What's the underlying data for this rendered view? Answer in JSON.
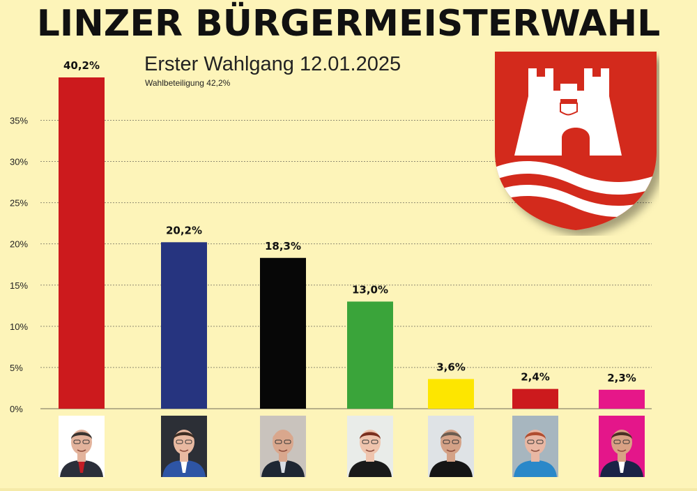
{
  "header": {
    "title": "LINZER BÜRGERMEISTERWAHL",
    "subtitle": "Erster Wahlgang 12.01.2025",
    "turnout": "Wahlbeteiligung 42,2%"
  },
  "chart_data": {
    "type": "bar",
    "title": "LINZER BÜRGERMEISTERWAHL",
    "subtitle": "Erster Wahlgang 12.01.2025",
    "ylim": [
      0,
      40.2
    ],
    "yticks": [
      0,
      5,
      10,
      15,
      20,
      25,
      30,
      35
    ],
    "ytick_labels": [
      "0%",
      "5%",
      "10%",
      "15%",
      "20%",
      "25%",
      "30%",
      "35%"
    ],
    "grid": true,
    "values": [
      40.2,
      20.2,
      18.3,
      13.0,
      3.6,
      2.4,
      2.3
    ],
    "value_labels": [
      "40,2%",
      "20,2%",
      "18,3%",
      "13,0%",
      "3,6%",
      "2,4%",
      "2,3%"
    ],
    "colors": [
      "#cc1a1d",
      "#26347f",
      "#070707",
      "#3aa43a",
      "#fde600",
      "#cc1a1d",
      "#e61789"
    ]
  },
  "crest": {
    "name": "linz-coat-of-arms",
    "colors": {
      "field": "#d32a1c",
      "charge": "#ffffff"
    }
  },
  "photos": [
    {
      "name": "candidate-1-photo",
      "bg": "#ffffff",
      "suit": "#2b2f3a",
      "tie": "#c21d25",
      "skin": "#e3b39c",
      "hair": "#3a3430"
    },
    {
      "name": "candidate-2-photo",
      "bg": "#2c2f36",
      "suit": "#2e55a5",
      "tie": "#ffffff",
      "skin": "#e8b9a1",
      "hair": "#3d2c22"
    },
    {
      "name": "candidate-3-photo",
      "bg": "#c9c3bd",
      "suit": "#1f2733",
      "tie": "#d9dde4",
      "skin": "#d9a78d",
      "hair": "#d9a78d"
    },
    {
      "name": "candidate-4-photo",
      "bg": "#e9ece9",
      "suit": "#1a1a1a",
      "tie": "#1a1a1a",
      "skin": "#efc4ad",
      "hair": "#7a2f1e"
    },
    {
      "name": "candidate-5-photo",
      "bg": "#dfe3e6",
      "suit": "#151515",
      "tie": "#151515",
      "skin": "#d4a287",
      "hair": "#6b5c50"
    },
    {
      "name": "candidate-6-photo",
      "bg": "#a7b6bf",
      "suit": "#2a88c9",
      "tie": "#2a88c9",
      "skin": "#e9b7a3",
      "hair": "#b04d2f"
    },
    {
      "name": "candidate-7-photo",
      "bg": "#e4168a",
      "suit": "#1b2346",
      "tie": "#ffffff",
      "skin": "#d9a184",
      "hair": "#4a3024"
    }
  ]
}
